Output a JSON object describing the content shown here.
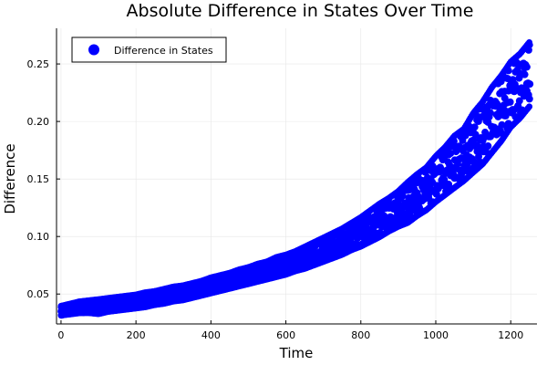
{
  "chart_data": {
    "type": "scatter",
    "title": "Absolute Difference in States Over Time",
    "xlabel": "Time",
    "ylabel": "Difference",
    "xlim": [
      -12,
      1270
    ],
    "ylim": [
      0.024,
      0.281
    ],
    "xticks": [
      0,
      200,
      400,
      600,
      800,
      1000,
      1200
    ],
    "xtick_labels": [
      "0",
      "200",
      "400",
      "600",
      "800",
      "1000",
      "1200"
    ],
    "yticks": [
      0.05,
      0.1,
      0.15,
      0.2,
      0.25
    ],
    "ytick_labels": [
      "0.05",
      "0.10",
      "0.15",
      "0.20",
      "0.25"
    ],
    "grid": true,
    "legend": {
      "position": "top-left",
      "entries": [
        "Difference in States"
      ]
    },
    "colors": {
      "series": "#0000ff",
      "axis": "#000000",
      "grid": "#e6e6e6",
      "background": "#ffffff"
    },
    "series": [
      {
        "name": "Difference in States",
        "marker": "circle",
        "x": [
          0,
          25,
          50,
          75,
          100,
          125,
          150,
          175,
          200,
          225,
          250,
          275,
          300,
          325,
          350,
          375,
          400,
          425,
          450,
          475,
          500,
          525,
          550,
          575,
          600,
          625,
          650,
          675,
          700,
          725,
          750,
          775,
          800,
          825,
          850,
          875,
          900,
          925,
          950,
          975,
          1000,
          1025,
          1050,
          1075,
          1100,
          1125,
          1150,
          1175,
          1200,
          1225,
          1250
        ],
        "y_low": [
          0.031,
          0.032,
          0.033,
          0.033,
          0.032,
          0.034,
          0.035,
          0.036,
          0.037,
          0.038,
          0.04,
          0.041,
          0.043,
          0.044,
          0.046,
          0.048,
          0.05,
          0.052,
          0.054,
          0.056,
          0.058,
          0.06,
          0.062,
          0.064,
          0.066,
          0.069,
          0.071,
          0.074,
          0.077,
          0.08,
          0.083,
          0.087,
          0.09,
          0.094,
          0.098,
          0.103,
          0.107,
          0.11,
          0.116,
          0.121,
          0.128,
          0.134,
          0.14,
          0.146,
          0.153,
          0.16,
          0.17,
          0.18,
          0.192,
          0.2,
          0.21
        ],
        "y_high": [
          0.04,
          0.042,
          0.044,
          0.045,
          0.046,
          0.047,
          0.048,
          0.049,
          0.05,
          0.052,
          0.053,
          0.055,
          0.057,
          0.058,
          0.06,
          0.062,
          0.065,
          0.067,
          0.069,
          0.072,
          0.074,
          0.077,
          0.079,
          0.083,
          0.085,
          0.088,
          0.092,
          0.096,
          0.1,
          0.104,
          0.108,
          0.113,
          0.118,
          0.124,
          0.13,
          0.135,
          0.141,
          0.149,
          0.156,
          0.162,
          0.172,
          0.18,
          0.19,
          0.196,
          0.21,
          0.22,
          0.233,
          0.243,
          0.255,
          0.262,
          0.272
        ]
      }
    ]
  }
}
